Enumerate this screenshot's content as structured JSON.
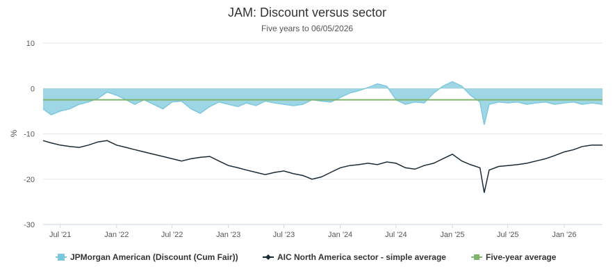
{
  "chart_data": {
    "type": "line",
    "title": "JAM: Discount versus sector",
    "subtitle": "Five years to 06/05/2026",
    "xlabel": "",
    "ylabel": "%",
    "ylim": [
      -30,
      10
    ],
    "yticks": [
      10,
      0,
      -10,
      -20,
      -30
    ],
    "x_range": [
      "2021-05-06",
      "2026-05-06"
    ],
    "x_ticks": [
      {
        "label": "Jul '21",
        "date": "2021-07-01"
      },
      {
        "label": "Jan '22",
        "date": "2022-01-01"
      },
      {
        "label": "Jul '22",
        "date": "2022-07-01"
      },
      {
        "label": "Jan '23",
        "date": "2023-01-01"
      },
      {
        "label": "Jul '23",
        "date": "2023-07-01"
      },
      {
        "label": "Jan '24",
        "date": "2024-01-01"
      },
      {
        "label": "Jul '24",
        "date": "2024-07-01"
      },
      {
        "label": "Jan '25",
        "date": "2025-01-01"
      },
      {
        "label": "Jul '25",
        "date": "2025-07-01"
      },
      {
        "label": "Jan '26",
        "date": "2026-01-01"
      }
    ],
    "grid": "horizontal",
    "legend_position": "bottom",
    "series": [
      {
        "name": "JPMorgan American (Discount (Cum Fair))",
        "kind": "area",
        "color": "#7ec8dd",
        "points": [
          [
            "2021-05-06",
            -4.5
          ],
          [
            "2021-06-01",
            -5.8
          ],
          [
            "2021-07-01",
            -5.0
          ],
          [
            "2021-08-01",
            -4.5
          ],
          [
            "2021-09-01",
            -3.5
          ],
          [
            "2021-10-01",
            -3.0
          ],
          [
            "2021-11-01",
            -2.2
          ],
          [
            "2021-12-01",
            -0.8
          ],
          [
            "2022-01-01",
            -1.5
          ],
          [
            "2022-02-01",
            -2.5
          ],
          [
            "2022-03-01",
            -3.5
          ],
          [
            "2022-04-01",
            -2.5
          ],
          [
            "2022-05-01",
            -3.5
          ],
          [
            "2022-06-01",
            -4.5
          ],
          [
            "2022-07-01",
            -3.0
          ],
          [
            "2022-08-01",
            -2.8
          ],
          [
            "2022-09-01",
            -4.5
          ],
          [
            "2022-10-01",
            -5.5
          ],
          [
            "2022-11-01",
            -4.0
          ],
          [
            "2022-12-01",
            -3.0
          ],
          [
            "2023-01-01",
            -3.5
          ],
          [
            "2023-02-01",
            -4.0
          ],
          [
            "2023-03-01",
            -3.2
          ],
          [
            "2023-04-01",
            -3.8
          ],
          [
            "2023-05-01",
            -2.8
          ],
          [
            "2023-06-01",
            -3.2
          ],
          [
            "2023-07-01",
            -3.5
          ],
          [
            "2023-08-01",
            -3.8
          ],
          [
            "2023-09-01",
            -3.5
          ],
          [
            "2023-10-01",
            -2.5
          ],
          [
            "2023-11-01",
            -2.8
          ],
          [
            "2023-12-01",
            -3.0
          ],
          [
            "2024-01-01",
            -2.0
          ],
          [
            "2024-02-01",
            -1.0
          ],
          [
            "2024-03-01",
            -0.5
          ],
          [
            "2024-04-01",
            0.2
          ],
          [
            "2024-05-01",
            1.0
          ],
          [
            "2024-06-01",
            0.5
          ],
          [
            "2024-07-01",
            -2.5
          ],
          [
            "2024-08-01",
            -3.5
          ],
          [
            "2024-09-01",
            -3.0
          ],
          [
            "2024-10-01",
            -3.2
          ],
          [
            "2024-11-01",
            -1.0
          ],
          [
            "2024-12-01",
            0.5
          ],
          [
            "2025-01-01",
            1.5
          ],
          [
            "2025-02-01",
            0.5
          ],
          [
            "2025-03-01",
            -1.5
          ],
          [
            "2025-04-01",
            -3.0
          ],
          [
            "2025-04-15",
            -8.0
          ],
          [
            "2025-05-01",
            -3.5
          ],
          [
            "2025-06-01",
            -3.0
          ],
          [
            "2025-07-01",
            -3.2
          ],
          [
            "2025-08-01",
            -3.0
          ],
          [
            "2025-09-01",
            -3.5
          ],
          [
            "2025-10-01",
            -3.2
          ],
          [
            "2025-11-01",
            -3.0
          ],
          [
            "2025-12-01",
            -3.5
          ],
          [
            "2026-01-01",
            -3.2
          ],
          [
            "2026-02-01",
            -3.0
          ],
          [
            "2026-03-01",
            -3.5
          ],
          [
            "2026-04-01",
            -3.2
          ],
          [
            "2026-05-06",
            -3.5
          ]
        ]
      },
      {
        "name": "AIC North America sector - simple average",
        "kind": "line",
        "color": "#1a2a35",
        "points": [
          [
            "2021-05-06",
            -11.5
          ],
          [
            "2021-06-01",
            -12.0
          ],
          [
            "2021-07-01",
            -12.5
          ],
          [
            "2021-08-01",
            -12.8
          ],
          [
            "2021-09-01",
            -13.0
          ],
          [
            "2021-10-01",
            -12.5
          ],
          [
            "2021-11-01",
            -11.8
          ],
          [
            "2021-12-01",
            -11.5
          ],
          [
            "2022-01-01",
            -12.5
          ],
          [
            "2022-02-01",
            -13.0
          ],
          [
            "2022-03-01",
            -13.5
          ],
          [
            "2022-04-01",
            -14.0
          ],
          [
            "2022-05-01",
            -14.5
          ],
          [
            "2022-06-01",
            -15.0
          ],
          [
            "2022-07-01",
            -15.5
          ],
          [
            "2022-08-01",
            -16.0
          ],
          [
            "2022-09-01",
            -15.5
          ],
          [
            "2022-10-01",
            -15.2
          ],
          [
            "2022-11-01",
            -15.0
          ],
          [
            "2022-12-01",
            -16.0
          ],
          [
            "2023-01-01",
            -17.0
          ],
          [
            "2023-02-01",
            -17.5
          ],
          [
            "2023-03-01",
            -18.0
          ],
          [
            "2023-04-01",
            -18.5
          ],
          [
            "2023-05-01",
            -19.0
          ],
          [
            "2023-06-01",
            -18.5
          ],
          [
            "2023-07-01",
            -18.2
          ],
          [
            "2023-08-01",
            -18.8
          ],
          [
            "2023-09-01",
            -19.2
          ],
          [
            "2023-10-01",
            -20.0
          ],
          [
            "2023-11-01",
            -19.5
          ],
          [
            "2023-12-01",
            -18.5
          ],
          [
            "2024-01-01",
            -17.5
          ],
          [
            "2024-02-01",
            -17.0
          ],
          [
            "2024-03-01",
            -16.8
          ],
          [
            "2024-04-01",
            -16.5
          ],
          [
            "2024-05-01",
            -16.8
          ],
          [
            "2024-06-01",
            -16.2
          ],
          [
            "2024-07-01",
            -16.5
          ],
          [
            "2024-08-01",
            -17.5
          ],
          [
            "2024-09-01",
            -17.8
          ],
          [
            "2024-10-01",
            -17.0
          ],
          [
            "2024-11-01",
            -16.5
          ],
          [
            "2024-12-01",
            -15.5
          ],
          [
            "2025-01-01",
            -14.5
          ],
          [
            "2025-02-01",
            -16.0
          ],
          [
            "2025-03-01",
            -16.8
          ],
          [
            "2025-04-01",
            -17.5
          ],
          [
            "2025-04-15",
            -23.0
          ],
          [
            "2025-05-01",
            -18.0
          ],
          [
            "2025-06-01",
            -17.2
          ],
          [
            "2025-07-01",
            -17.0
          ],
          [
            "2025-08-01",
            -16.8
          ],
          [
            "2025-09-01",
            -16.5
          ],
          [
            "2025-10-01",
            -16.0
          ],
          [
            "2025-11-01",
            -15.5
          ],
          [
            "2025-12-01",
            -14.8
          ],
          [
            "2026-01-01",
            -14.0
          ],
          [
            "2026-02-01",
            -13.5
          ],
          [
            "2026-03-01",
            -12.8
          ],
          [
            "2026-04-01",
            -12.5
          ],
          [
            "2026-05-06",
            -12.5
          ]
        ]
      },
      {
        "name": "Five-year average",
        "kind": "line",
        "color": "#7fb56a",
        "points": [
          [
            "2021-05-06",
            -2.5
          ],
          [
            "2026-05-06",
            -2.5
          ]
        ]
      }
    ]
  }
}
